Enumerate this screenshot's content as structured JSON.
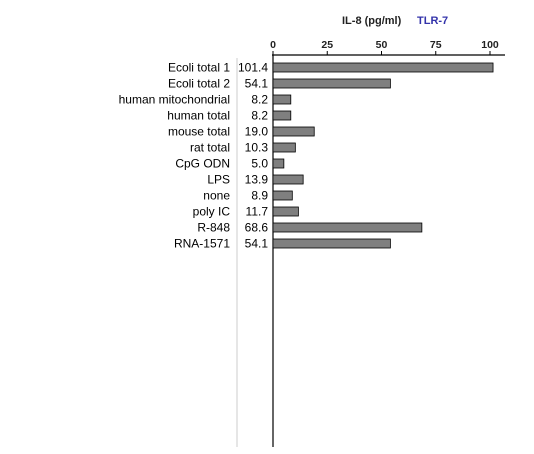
{
  "header": {
    "title": "IL-8 (pg/ml)",
    "tag": "TLR-7",
    "tag_color": "#3333aa"
  },
  "colors": {
    "bar_fill": "#7f7f7f",
    "bar_stroke": "#000000",
    "axis": "#000000",
    "separator": "#cccccc"
  },
  "chart_data": {
    "type": "bar",
    "orientation": "horizontal",
    "title": "",
    "xlabel": "IL-8 (pg/ml)",
    "ylabel": "",
    "xlim": [
      0,
      100
    ],
    "xticks": [
      0,
      25,
      50,
      75,
      100
    ],
    "grid": false,
    "categories": [
      "Ecoli total 1",
      "Ecoli total 2",
      "human mitochondrial",
      "human total",
      "mouse total",
      "rat total",
      "CpG ODN",
      "LPS",
      "none",
      "poly IC",
      "R-848",
      "RNA-1571"
    ],
    "values": [
      101.4,
      54.1,
      8.2,
      8.2,
      19.0,
      10.3,
      5.0,
      13.9,
      8.9,
      11.7,
      68.6,
      54.1
    ],
    "value_labels": [
      "101.4",
      "54.1",
      "8.2",
      "8.2",
      "19.0",
      "10.3",
      "5.0",
      "13.9",
      "8.9",
      "11.7",
      "68.6",
      "54.1"
    ]
  }
}
